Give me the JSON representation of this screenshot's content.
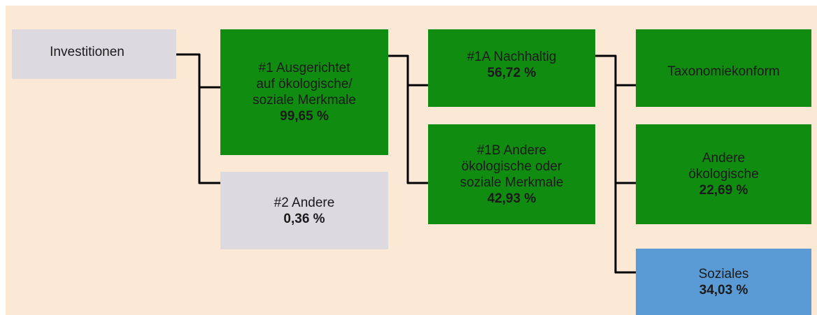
{
  "nodes": [
    {
      "lines": [
        "Investitionen"
      ]
    },
    {
      "lines": [
        "#1 Ausgerichtet",
        "auf ökologische/",
        "soziale Merkmale"
      ],
      "value": "99,65 %"
    },
    {
      "lines": [
        "#2 Andere"
      ],
      "value": "0,36 %"
    },
    {
      "lines": [
        "#1A Nachhaltig"
      ],
      "value": "56,72 %"
    },
    {
      "lines": [
        "#1B Andere",
        "ökologische oder",
        "soziale Merkmale"
      ],
      "value": "42,93 %"
    },
    {
      "lines": [
        "Taxonomiekonform"
      ]
    },
    {
      "lines": [
        "Andere",
        "ökologische"
      ],
      "value": "22,69 %"
    },
    {
      "lines": [
        "Soziales"
      ],
      "value": "34,03 %"
    }
  ]
}
